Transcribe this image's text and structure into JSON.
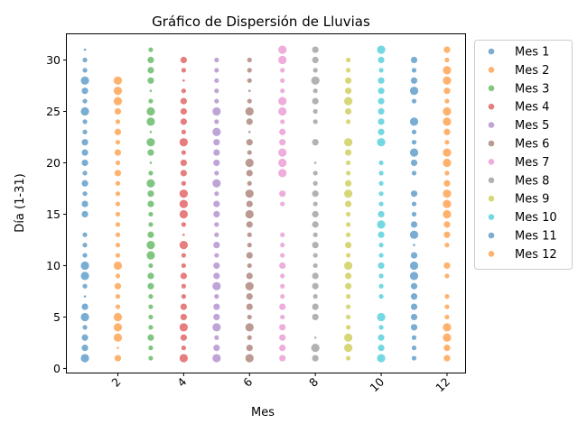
{
  "chart_data": {
    "type": "scatter",
    "title": "Gráfico de Dispersión de Lluvias",
    "xlabel": "Mes",
    "ylabel": "Día (1-31)",
    "xlim": [
      0.45,
      12.55
    ],
    "ylim": [
      -0.4,
      32.5
    ],
    "xticks": [
      2,
      4,
      6,
      8,
      10,
      12
    ],
    "yticks": [
      0,
      5,
      10,
      15,
      20,
      25,
      30
    ],
    "legend_position": "outside-right-top",
    "grid": false,
    "series": [
      {
        "name": "Mes 1",
        "color": "#1f77b4",
        "x": 1,
        "days": [
          1,
          2,
          3,
          4,
          5,
          6,
          7,
          8,
          9,
          10,
          11,
          12,
          13,
          15,
          16,
          17,
          18,
          19,
          20,
          21,
          22,
          23,
          24,
          25,
          26,
          27,
          28,
          29,
          30,
          31
        ],
        "sizes": [
          3,
          2,
          2,
          1,
          3,
          2,
          0,
          1,
          3,
          3,
          1,
          1,
          1,
          2,
          2,
          1,
          2,
          1,
          2,
          2,
          2,
          1,
          1,
          3,
          1,
          2,
          3,
          1,
          1,
          0
        ]
      },
      {
        "name": "Mes 2",
        "color": "#ff7f0e",
        "x": 2,
        "days": [
          1,
          2,
          3,
          4,
          5,
          6,
          7,
          8,
          9,
          10,
          11,
          12,
          13,
          14,
          15,
          16,
          17,
          18,
          19,
          20,
          21,
          22,
          23,
          24,
          25,
          26,
          27,
          28
        ],
        "sizes": [
          2,
          0,
          3,
          3,
          3,
          1,
          1,
          2,
          1,
          3,
          1,
          1,
          1,
          1,
          1,
          1,
          1,
          1,
          2,
          1,
          2,
          1,
          2,
          1,
          2,
          3,
          3,
          3
        ]
      },
      {
        "name": "Mes 3",
        "color": "#2ca02c",
        "x": 3,
        "days": [
          1,
          2,
          3,
          4,
          5,
          6,
          7,
          8,
          9,
          10,
          11,
          12,
          13,
          14,
          15,
          16,
          17,
          18,
          19,
          20,
          21,
          22,
          23,
          24,
          25,
          26,
          27,
          28,
          29,
          30,
          31
        ],
        "sizes": [
          1,
          1,
          2,
          1,
          1,
          1,
          1,
          2,
          2,
          1,
          3,
          3,
          2,
          1,
          1,
          2,
          2,
          3,
          1,
          0,
          2,
          3,
          0,
          3,
          3,
          1,
          0,
          2,
          2,
          2,
          1
        ]
      },
      {
        "name": "Mes 4",
        "color": "#d62728",
        "x": 4,
        "days": [
          1,
          2,
          3,
          4,
          5,
          6,
          7,
          8,
          9,
          10,
          11,
          12,
          13,
          14,
          15,
          16,
          17,
          18,
          19,
          20,
          21,
          22,
          23,
          24,
          25,
          26,
          27,
          28,
          29,
          30
        ],
        "sizes": [
          3,
          1,
          2,
          3,
          2,
          2,
          1,
          1,
          2,
          1,
          1,
          3,
          0,
          1,
          3,
          3,
          3,
          1,
          2,
          2,
          1,
          3,
          1,
          2,
          2,
          2,
          1,
          0,
          1,
          2
        ]
      },
      {
        "name": "Mes 5",
        "color": "#9467bd",
        "x": 5,
        "days": [
          1,
          2,
          3,
          4,
          5,
          6,
          7,
          8,
          9,
          10,
          11,
          12,
          13,
          14,
          15,
          16,
          17,
          18,
          19,
          20,
          21,
          22,
          23,
          24,
          25,
          26,
          27,
          28,
          29,
          30
        ],
        "sizes": [
          3,
          2,
          1,
          3,
          2,
          2,
          1,
          3,
          2,
          2,
          1,
          2,
          1,
          1,
          2,
          2,
          1,
          3,
          1,
          2,
          2,
          2,
          3,
          1,
          3,
          1,
          1,
          1,
          1,
          1
        ]
      },
      {
        "name": "Mes 6",
        "color": "#8c564b",
        "x": 6,
        "days": [
          1,
          2,
          3,
          4,
          5,
          6,
          7,
          8,
          9,
          10,
          11,
          12,
          13,
          14,
          15,
          16,
          17,
          18,
          19,
          20,
          21,
          22,
          23,
          24,
          25,
          26,
          27,
          28,
          29,
          30
        ],
        "sizes": [
          3,
          2,
          1,
          3,
          1,
          2,
          2,
          3,
          2,
          1,
          2,
          1,
          1,
          2,
          3,
          2,
          3,
          1,
          2,
          3,
          1,
          2,
          0,
          2,
          3,
          1,
          0,
          1,
          1,
          1
        ]
      },
      {
        "name": "Mes 7",
        "color": "#e377c2",
        "x": 7,
        "days": [
          1,
          2,
          3,
          4,
          5,
          6,
          7,
          8,
          9,
          10,
          11,
          12,
          13,
          16,
          17,
          19,
          20,
          21,
          22,
          23,
          24,
          25,
          26,
          27,
          28,
          29,
          30,
          31
        ],
        "sizes": [
          2,
          2,
          2,
          2,
          1,
          2,
          1,
          1,
          1,
          2,
          1,
          1,
          1,
          1,
          2,
          3,
          3,
          3,
          2,
          2,
          1,
          3,
          3,
          1,
          1,
          1,
          3,
          3
        ]
      },
      {
        "name": "Mes 8",
        "color": "#7f7f7f",
        "x": 8,
        "days": [
          1,
          2,
          3,
          5,
          6,
          7,
          8,
          9,
          10,
          11,
          12,
          13,
          14,
          15,
          16,
          17,
          18,
          19,
          20,
          22,
          24,
          25,
          26,
          27,
          28,
          29,
          30,
          31
        ],
        "sizes": [
          2,
          3,
          0,
          2,
          2,
          1,
          2,
          2,
          1,
          1,
          2,
          1,
          2,
          2,
          1,
          2,
          1,
          1,
          0,
          2,
          1,
          1,
          2,
          1,
          3,
          1,
          2,
          2
        ]
      },
      {
        "name": "Mes 9",
        "color": "#bcbd22",
        "x": 9,
        "days": [
          1,
          2,
          3,
          4,
          5,
          6,
          7,
          8,
          9,
          10,
          11,
          12,
          13,
          14,
          15,
          16,
          17,
          18,
          19,
          20,
          21,
          22,
          24,
          25,
          26,
          27,
          28,
          29,
          30
        ],
        "sizes": [
          1,
          3,
          3,
          1,
          1,
          1,
          1,
          2,
          2,
          3,
          1,
          2,
          1,
          1,
          1,
          2,
          3,
          2,
          1,
          1,
          2,
          3,
          1,
          2,
          3,
          2,
          2,
          1,
          1
        ]
      },
      {
        "name": "Mes 10",
        "color": "#17becf",
        "x": 10,
        "days": [
          1,
          2,
          3,
          4,
          5,
          7,
          8,
          9,
          10,
          11,
          12,
          13,
          14,
          15,
          16,
          17,
          18,
          19,
          20,
          22,
          23,
          24,
          25,
          26,
          27,
          28,
          29,
          30,
          31
        ],
        "sizes": [
          3,
          2,
          2,
          1,
          3,
          1,
          1,
          1,
          2,
          1,
          1,
          2,
          3,
          2,
          1,
          1,
          1,
          1,
          1,
          3,
          2,
          2,
          2,
          2,
          2,
          2,
          1,
          2,
          3
        ]
      },
      {
        "name": "Mes 11",
        "color": "#1f77b4",
        "x": 11,
        "days": [
          1,
          2,
          3,
          4,
          5,
          6,
          7,
          8,
          9,
          10,
          11,
          12,
          13,
          14,
          15,
          16,
          17,
          19,
          20,
          21,
          22,
          23,
          24,
          26,
          27,
          28,
          29,
          30
        ],
        "sizes": [
          1,
          1,
          1,
          2,
          2,
          2,
          2,
          2,
          3,
          3,
          2,
          0,
          3,
          2,
          1,
          1,
          2,
          1,
          2,
          3,
          1,
          1,
          3,
          1,
          3,
          2,
          1,
          2
        ]
      },
      {
        "name": "Mes 12",
        "color": "#ff7f0e",
        "x": 12,
        "days": [
          1,
          2,
          3,
          4,
          5,
          6,
          7,
          9,
          10,
          12,
          13,
          14,
          15,
          16,
          17,
          18,
          19,
          20,
          21,
          22,
          23,
          24,
          25,
          26,
          27,
          28,
          29,
          30,
          31
        ],
        "sizes": [
          2,
          2,
          3,
          3,
          1,
          1,
          1,
          1,
          2,
          1,
          2,
          2,
          3,
          3,
          3,
          2,
          1,
          3,
          3,
          1,
          2,
          3,
          3,
          1,
          2,
          3,
          3,
          1,
          2
        ]
      }
    ]
  }
}
